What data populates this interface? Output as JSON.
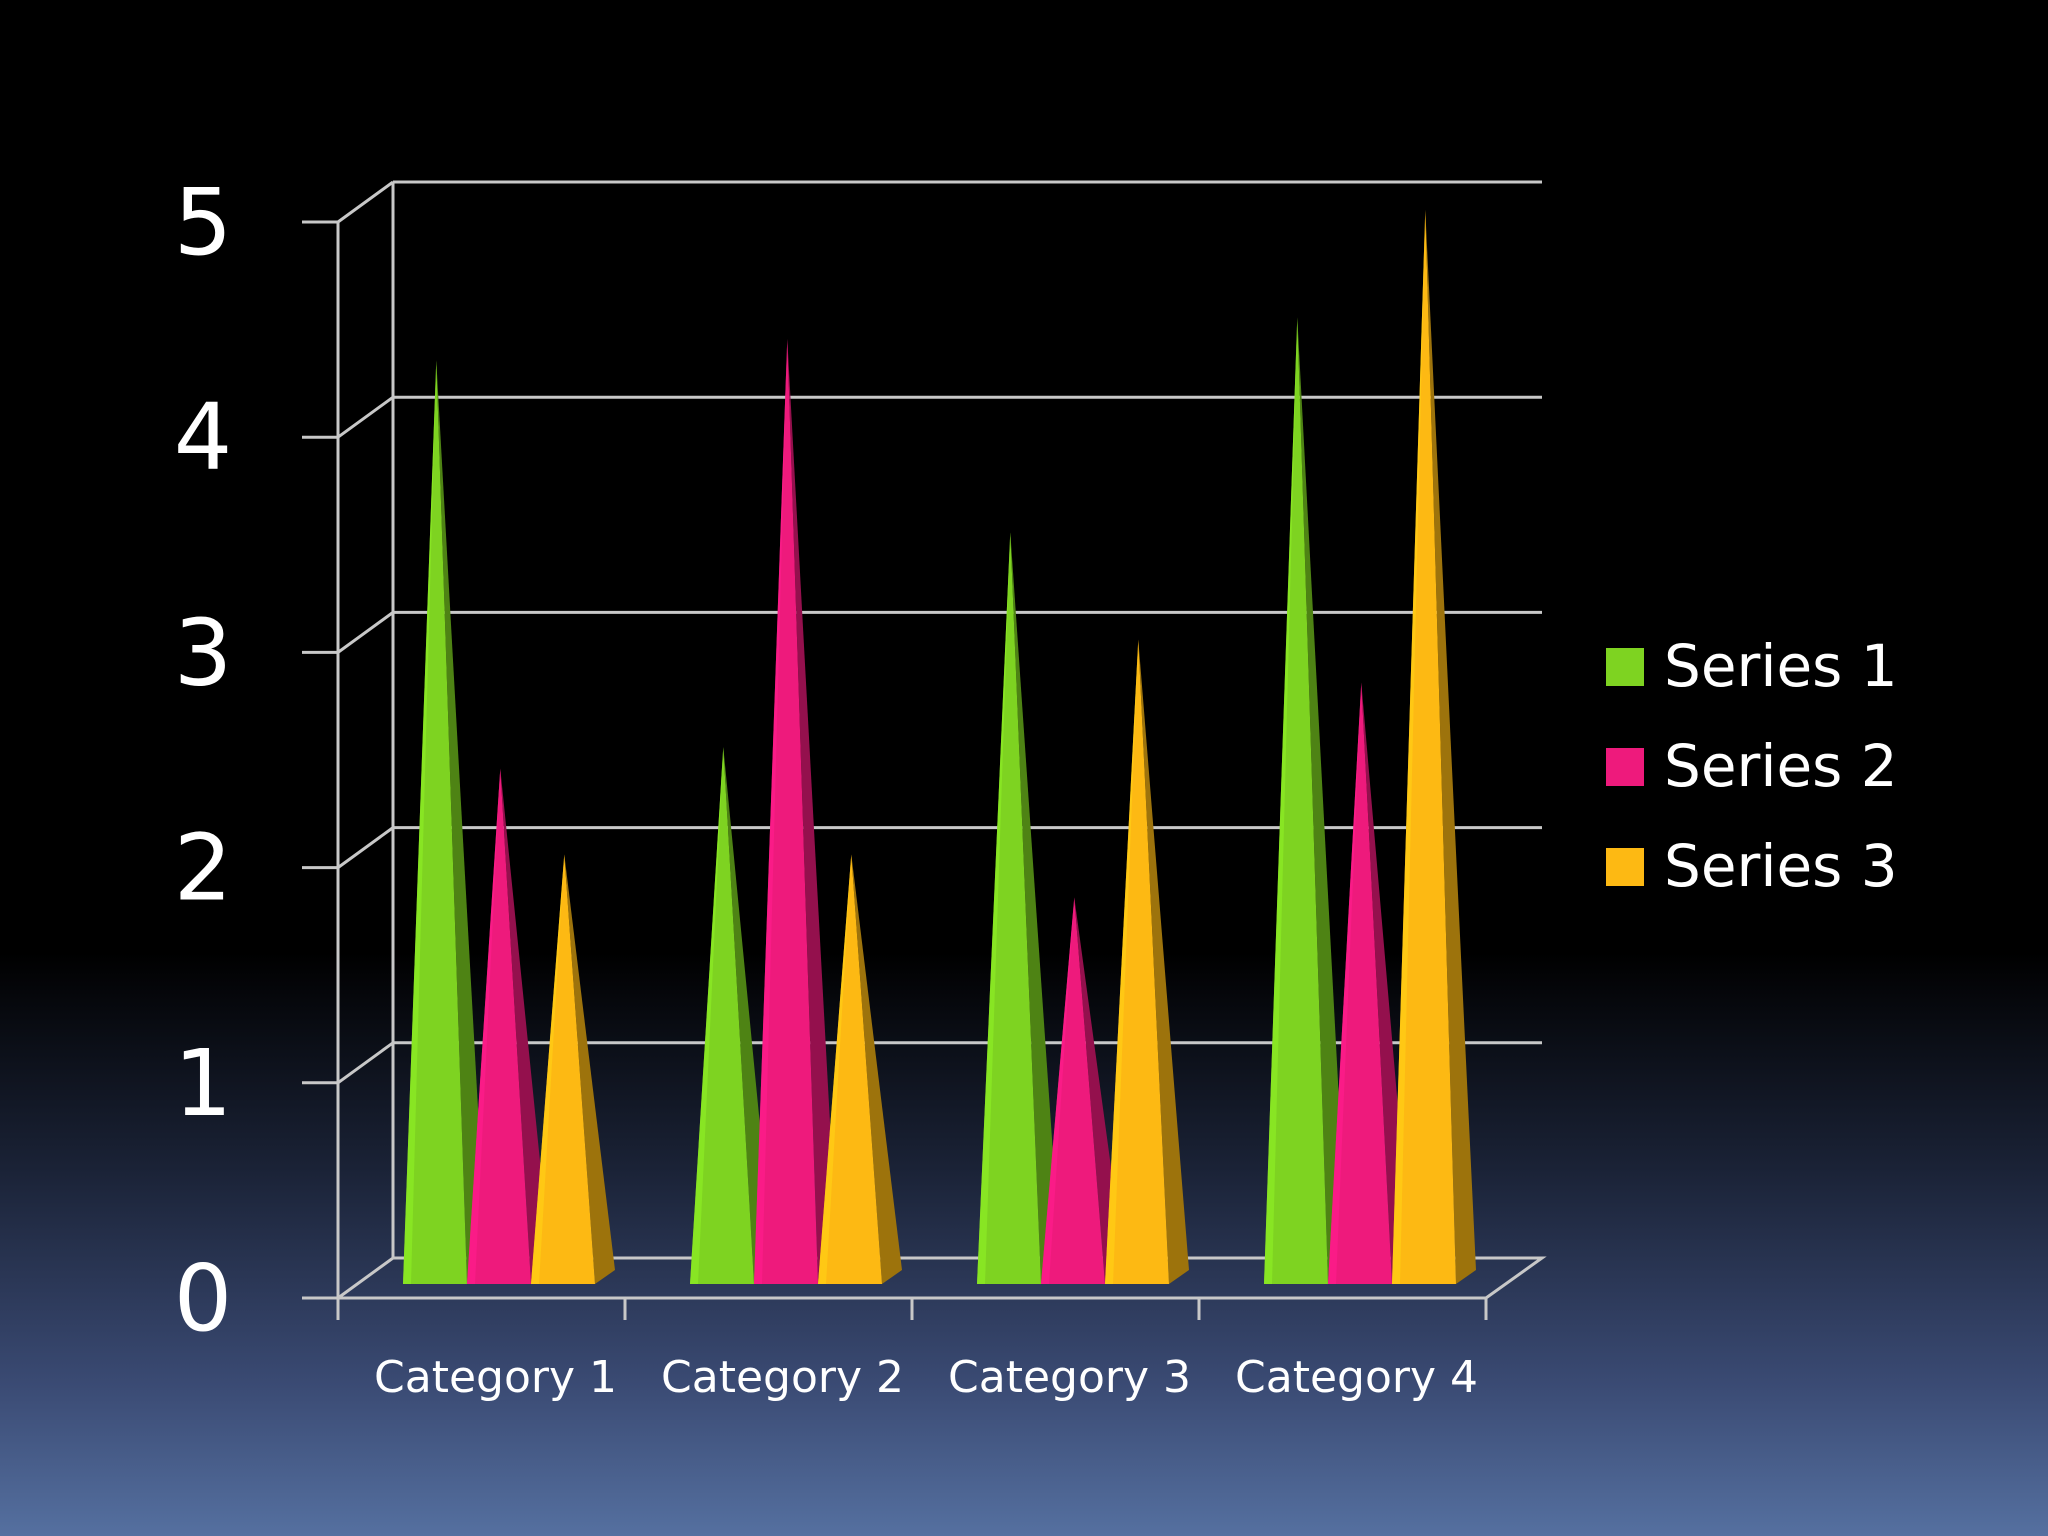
{
  "chart_data": {
    "type": "bar",
    "style": "3d-cone",
    "categories": [
      "Category 1",
      "Category 2",
      "Category 3",
      "Category 4"
    ],
    "series": [
      {
        "name": "Series 1",
        "color": "#7ed321",
        "values": [
          4.3,
          2.5,
          3.5,
          4.5
        ]
      },
      {
        "name": "Series 2",
        "color": "#ee1a7c",
        "values": [
          2.4,
          4.4,
          1.8,
          2.8
        ]
      },
      {
        "name": "Series 3",
        "color": "#fdb913",
        "values": [
          2.0,
          2.0,
          3.0,
          5.0
        ]
      }
    ],
    "yticks": [
      "0",
      "1",
      "2",
      "3",
      "4",
      "5"
    ],
    "ylim": [
      0,
      5
    ],
    "grid": true,
    "legend_position": "right",
    "title": "",
    "xlabel": "",
    "ylabel": ""
  }
}
